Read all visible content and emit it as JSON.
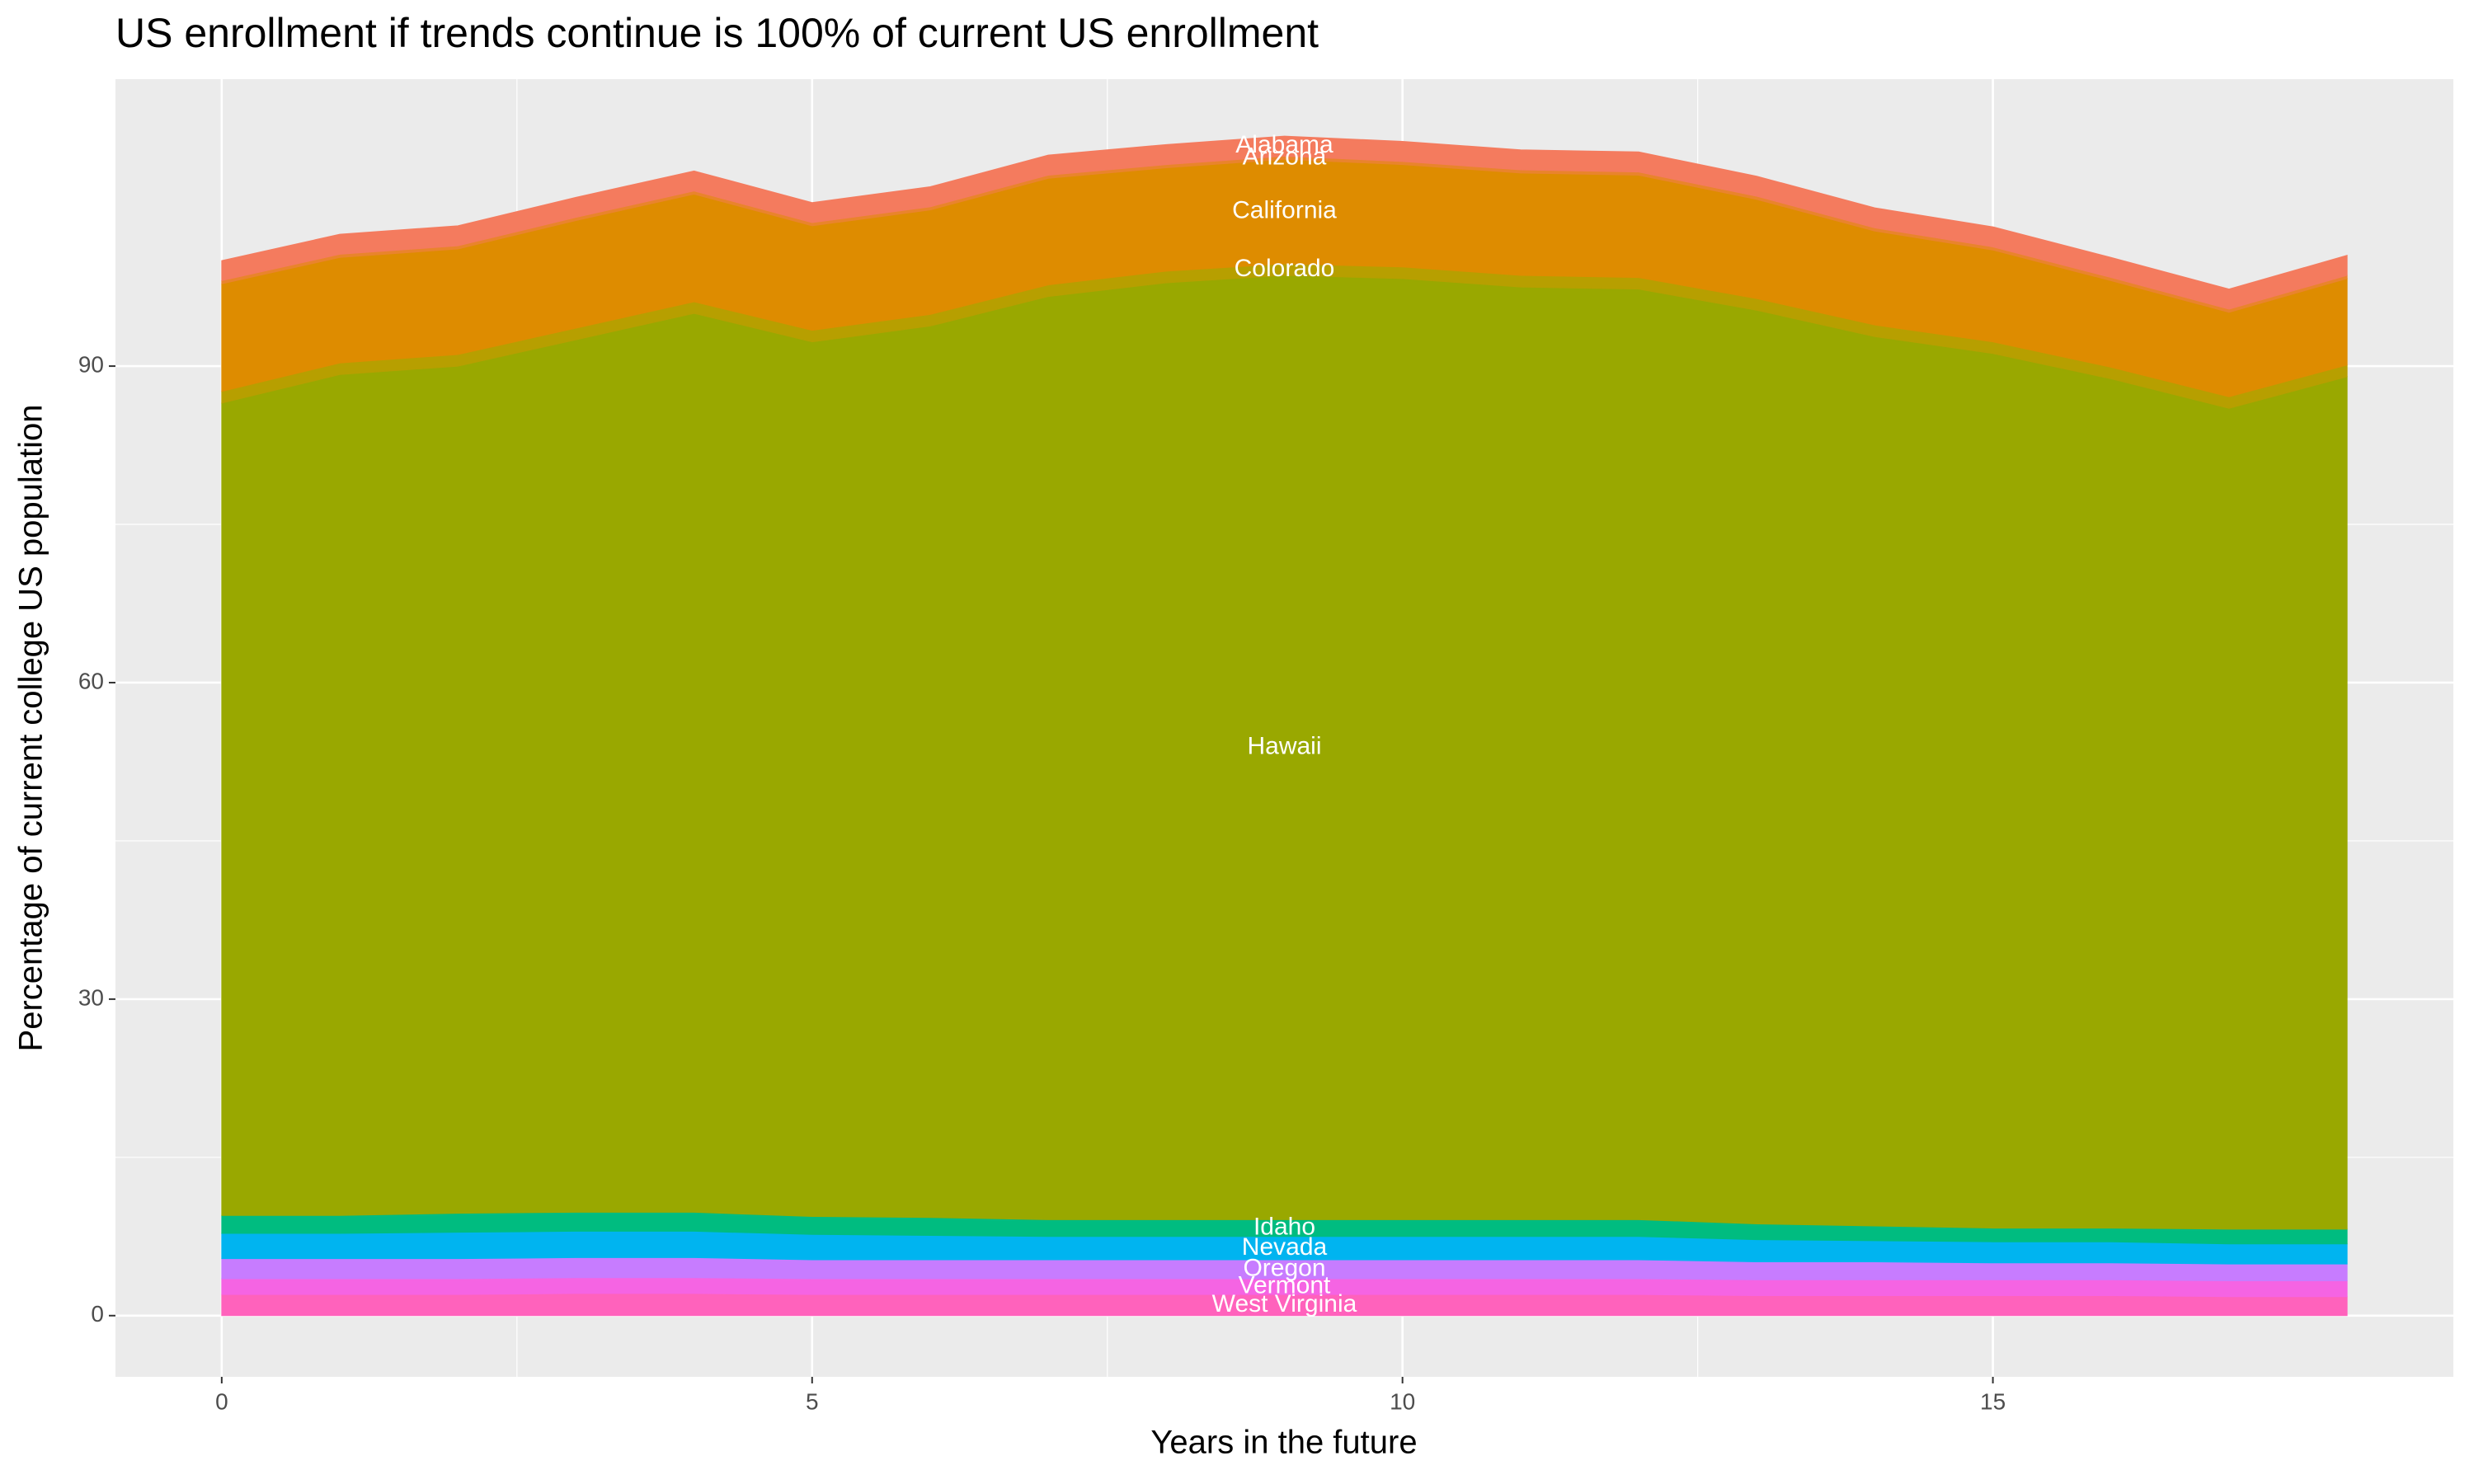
{
  "chart_data": {
    "type": "area",
    "stacked": true,
    "title": "US enrollment if trends continue is 100% of current US enrollment",
    "x_label": "Years in the future",
    "y_label": "Percentage of current college US population",
    "x": [
      0,
      1,
      2,
      3,
      4,
      5,
      6,
      7,
      8,
      9,
      10,
      11,
      12,
      13,
      14,
      15,
      16,
      17,
      18
    ],
    "xlim": [
      -0.9,
      18.9
    ],
    "xticks": [
      0,
      5,
      10,
      15
    ],
    "ylim": [
      -5.8,
      117.2
    ],
    "yticks": [
      0,
      30,
      60,
      90
    ],
    "grid": true,
    "series": [
      {
        "name": "West Virginia",
        "color": "#ff62bc",
        "values": [
          2.0,
          2.0,
          2.0,
          2.1,
          2.1,
          2.0,
          2.0,
          2.0,
          2.0,
          2.0,
          2.0,
          2.0,
          2.0,
          1.9,
          1.9,
          1.9,
          1.9,
          1.8,
          1.8
        ]
      },
      {
        "name": "Vermont",
        "color": "#f564e3",
        "values": [
          1.5,
          1.5,
          1.5,
          1.5,
          1.5,
          1.5,
          1.5,
          1.5,
          1.5,
          1.5,
          1.5,
          1.5,
          1.5,
          1.5,
          1.5,
          1.5,
          1.5,
          1.5,
          1.5
        ]
      },
      {
        "name": "Oregon",
        "color": "#c77cff",
        "values": [
          1.9,
          1.9,
          1.9,
          1.9,
          1.9,
          1.8,
          1.8,
          1.8,
          1.8,
          1.8,
          1.8,
          1.8,
          1.8,
          1.7,
          1.7,
          1.6,
          1.6,
          1.6,
          1.6
        ]
      },
      {
        "name": "Nevada",
        "color": "#00b4f0",
        "values": [
          2.4,
          2.4,
          2.5,
          2.5,
          2.5,
          2.4,
          2.3,
          2.2,
          2.2,
          2.2,
          2.2,
          2.2,
          2.2,
          2.1,
          2.0,
          2.0,
          2.0,
          1.9,
          1.9
        ]
      },
      {
        "name": "Idaho",
        "color": "#00bc80",
        "values": [
          1.7,
          1.7,
          1.8,
          1.8,
          1.8,
          1.7,
          1.7,
          1.6,
          1.6,
          1.6,
          1.6,
          1.6,
          1.6,
          1.5,
          1.4,
          1.3,
          1.3,
          1.4,
          1.4
        ]
      },
      {
        "name": "Hawaii",
        "color": "#99a800",
        "values": [
          77.0,
          79.7,
          80.3,
          82.7,
          85.2,
          82.9,
          84.5,
          87.5,
          88.8,
          89.5,
          89.2,
          88.4,
          88.2,
          86.6,
          84.3,
          82.9,
          80.5,
          77.8,
          80.8
        ]
      },
      {
        "name": "Colorado",
        "color": "#b79f00",
        "values": [
          1.1,
          1.1,
          1.1,
          1.1,
          1.1,
          1.1,
          1.1,
          1.1,
          1.1,
          1.1,
          1.1,
          1.1,
          1.1,
          1.1,
          1.1,
          1.1,
          1.1,
          1.1,
          1.1
        ]
      },
      {
        "name": "California",
        "color": "#de8c00",
        "values": [
          10.2,
          10.0,
          10.0,
          10.2,
          10.2,
          9.9,
          9.9,
          10.1,
          9.8,
          9.9,
          9.7,
          9.7,
          9.7,
          9.4,
          8.9,
          8.7,
          8.2,
          8.0,
          8.2
        ]
      },
      {
        "name": "Arizona",
        "color": "#e9842c",
        "values": [
          0.3,
          0.3,
          0.3,
          0.3,
          0.3,
          0.3,
          0.3,
          0.3,
          0.3,
          0.3,
          0.3,
          0.3,
          0.3,
          0.3,
          0.3,
          0.3,
          0.3,
          0.3,
          0.3
        ]
      },
      {
        "name": "Alabama",
        "color": "#f47b5e",
        "values": [
          1.9,
          1.9,
          1.9,
          1.9,
          1.9,
          1.9,
          1.9,
          1.9,
          1.9,
          1.9,
          1.9,
          1.9,
          1.9,
          1.9,
          1.9,
          1.9,
          1.9,
          1.9,
          1.9
        ]
      }
    ]
  }
}
